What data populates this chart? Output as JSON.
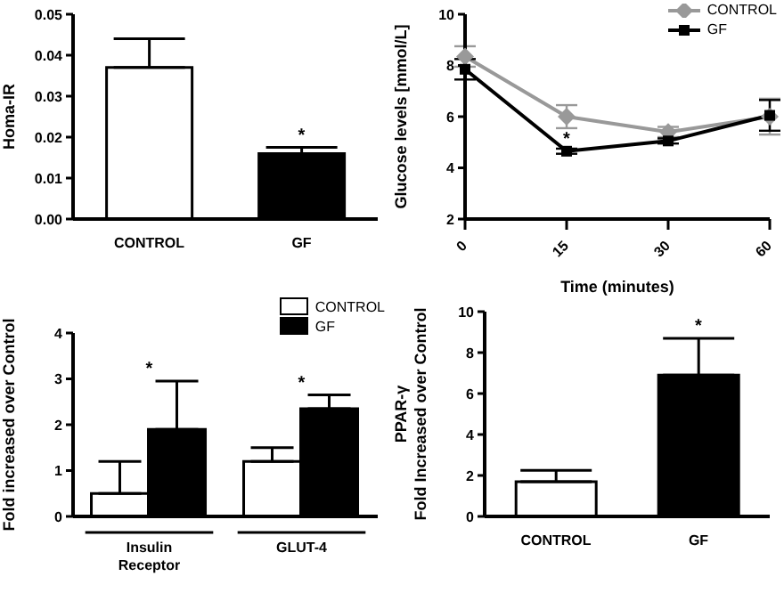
{
  "chart_data": [
    {
      "type": "bar",
      "ylabel": "Homa-IR",
      "categories": [
        "CONTROL",
        "GF"
      ],
      "values": [
        0.037,
        0.016
      ],
      "colors": [
        "#ffffff",
        "#000000"
      ],
      "errors": [
        [
          0.037,
          0.044
        ],
        [
          0.016,
          0.0175
        ]
      ],
      "ylim": [
        0,
        0.05
      ],
      "yticks": [
        {
          "value": 0,
          "label": "0.00"
        },
        {
          "value": 0.01,
          "label": "0.01"
        },
        {
          "value": 0.02,
          "label": "0.02"
        },
        {
          "value": 0.03,
          "label": "0.03"
        },
        {
          "value": 0.04,
          "label": "0.04"
        },
        {
          "value": 0.05,
          "label": "0.05"
        }
      ],
      "annotations": [
        {
          "text": "*",
          "x": "GF",
          "y": 0.0175
        }
      ]
    },
    {
      "type": "line",
      "xlabel": "Time (minutes)",
      "ylabel": "Glucose levels [mmol/L]",
      "categories": [
        "0",
        "15",
        "30",
        "60"
      ],
      "series": [
        {
          "name": "CONTROL",
          "color": "#999999",
          "marker": "diamond",
          "values": [
            8.35,
            6.0,
            5.4,
            6.0
          ],
          "errors": [
            0.4,
            0.45,
            0.2,
            0.7
          ]
        },
        {
          "name": "GF",
          "color": "#000000",
          "marker": "square",
          "values": [
            7.85,
            4.65,
            5.05,
            6.05
          ],
          "errors": [
            0.4,
            0.1,
            0.1,
            0.6
          ]
        }
      ],
      "ylim": [
        2,
        10
      ],
      "yticks": [
        2,
        4,
        6,
        8,
        10
      ],
      "legend": "top right",
      "annotations": [
        {
          "text": "*",
          "x": "15",
          "y": 4.65
        }
      ]
    },
    {
      "type": "bar",
      "ylabel": "Fold increased over Control",
      "categories": [
        "Insulin Receptor",
        "GLUT-4"
      ],
      "series": [
        {
          "name": "CONTROL",
          "color": "#ffffff",
          "values": [
            0.5,
            1.2
          ],
          "errors": [
            [
              0.5,
              1.2
            ],
            [
              1.2,
              1.5
            ]
          ]
        },
        {
          "name": "GF",
          "color": "#000000",
          "values": [
            1.9,
            2.35
          ],
          "errors": [
            [
              1.9,
              2.95
            ],
            [
              2.35,
              2.65
            ]
          ]
        }
      ],
      "ylim": [
        0,
        4
      ],
      "yticks": [
        0,
        1,
        2,
        3,
        4
      ],
      "legend": "top right",
      "annotations": [
        {
          "text": "*",
          "x": "Insulin Receptor",
          "y": 2.95
        },
        {
          "text": "*",
          "x": "GLUT-4",
          "y": 2.65
        }
      ]
    },
    {
      "type": "bar",
      "ylabel": "PPAR-γ\nFold Increased over Control",
      "categories": [
        "CONTROL",
        "GF"
      ],
      "values": [
        1.7,
        6.9
      ],
      "colors": [
        "#ffffff",
        "#000000"
      ],
      "errors": [
        [
          1.7,
          2.25
        ],
        [
          6.9,
          8.7
        ]
      ],
      "ylim": [
        0,
        10
      ],
      "yticks": [
        0,
        2,
        4,
        6,
        8,
        10
      ],
      "annotations": [
        {
          "text": "*",
          "x": "GF",
          "y": 8.7
        }
      ]
    }
  ]
}
